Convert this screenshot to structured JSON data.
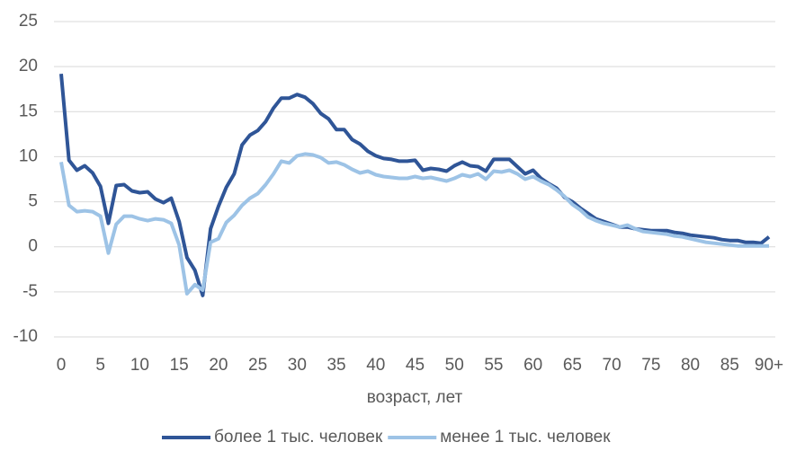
{
  "chart_data": {
    "type": "line",
    "x_label": "возраст, лет",
    "categories": [
      "0",
      null,
      null,
      null,
      null,
      "5",
      null,
      null,
      null,
      null,
      "10",
      null,
      null,
      null,
      null,
      "15",
      null,
      null,
      null,
      null,
      "20",
      null,
      null,
      null,
      null,
      "25",
      null,
      null,
      null,
      null,
      "30",
      null,
      null,
      null,
      null,
      "35",
      null,
      null,
      null,
      null,
      "40",
      null,
      null,
      null,
      null,
      "45",
      null,
      null,
      null,
      null,
      "50",
      null,
      null,
      null,
      null,
      "55",
      null,
      null,
      null,
      null,
      "60",
      null,
      null,
      null,
      null,
      "65",
      null,
      null,
      null,
      null,
      "70",
      null,
      null,
      null,
      null,
      "75",
      null,
      null,
      null,
      null,
      "80",
      null,
      null,
      null,
      null,
      "85",
      null,
      null,
      null,
      null,
      "90+"
    ],
    "series": [
      {
        "name": "более 1 тыс. человек",
        "color": "#2f5597",
        "values": [
          19.2,
          9.6,
          8.5,
          9.0,
          8.2,
          6.7,
          2.6,
          6.8,
          6.9,
          6.2,
          6.0,
          6.1,
          5.3,
          4.9,
          5.4,
          2.8,
          -1.2,
          -2.6,
          -5.4,
          2.0,
          4.5,
          6.6,
          8.1,
          11.3,
          12.4,
          12.9,
          13.9,
          15.4,
          16.5,
          16.5,
          16.9,
          16.6,
          15.9,
          14.8,
          14.2,
          13.0,
          13.0,
          11.9,
          11.4,
          10.6,
          10.1,
          9.8,
          9.7,
          9.5,
          9.5,
          9.6,
          8.5,
          8.7,
          8.6,
          8.4,
          9.0,
          9.4,
          9.0,
          8.9,
          8.4,
          9.7,
          9.7,
          9.7,
          8.9,
          8.1,
          8.5,
          7.6,
          7.0,
          6.5,
          5.5,
          5.0,
          4.3,
          3.7,
          3.1,
          2.8,
          2.5,
          2.2,
          2.2,
          2.0,
          1.9,
          1.8,
          1.8,
          1.8,
          1.6,
          1.5,
          1.3,
          1.2,
          1.1,
          1.0,
          0.8,
          0.7,
          0.7,
          0.5,
          0.5,
          0.4,
          1.1
        ]
      },
      {
        "name": "менее 1 тыс. человек",
        "color": "#9dc3e6",
        "values": [
          9.4,
          4.6,
          3.9,
          4.0,
          3.9,
          3.4,
          -0.7,
          2.5,
          3.4,
          3.4,
          3.1,
          2.9,
          3.1,
          3.0,
          2.6,
          0.2,
          -5.2,
          -4.2,
          -4.8,
          0.5,
          0.9,
          2.7,
          3.5,
          4.6,
          5.4,
          5.9,
          6.9,
          8.1,
          9.5,
          9.3,
          10.1,
          10.3,
          10.2,
          9.9,
          9.3,
          9.4,
          9.1,
          8.6,
          8.2,
          8.4,
          8.0,
          7.8,
          7.7,
          7.6,
          7.6,
          7.8,
          7.6,
          7.7,
          7.5,
          7.3,
          7.6,
          8.0,
          7.8,
          8.1,
          7.5,
          8.4,
          8.3,
          8.5,
          8.1,
          7.5,
          7.8,
          7.3,
          6.9,
          6.3,
          5.6,
          4.7,
          4.1,
          3.3,
          2.9,
          2.6,
          2.4,
          2.2,
          2.4,
          2.0,
          1.7,
          1.6,
          1.5,
          1.4,
          1.2,
          1.1,
          0.9,
          0.7,
          0.5,
          0.4,
          0.3,
          0.2,
          0.1,
          0.1,
          0.1,
          0.1,
          0.1
        ]
      }
    ],
    "ylim": [
      -10,
      25
    ],
    "yticks": [
      -10,
      -5,
      0,
      5,
      10,
      15,
      20,
      25
    ],
    "grid": true,
    "legend": "bottom"
  }
}
